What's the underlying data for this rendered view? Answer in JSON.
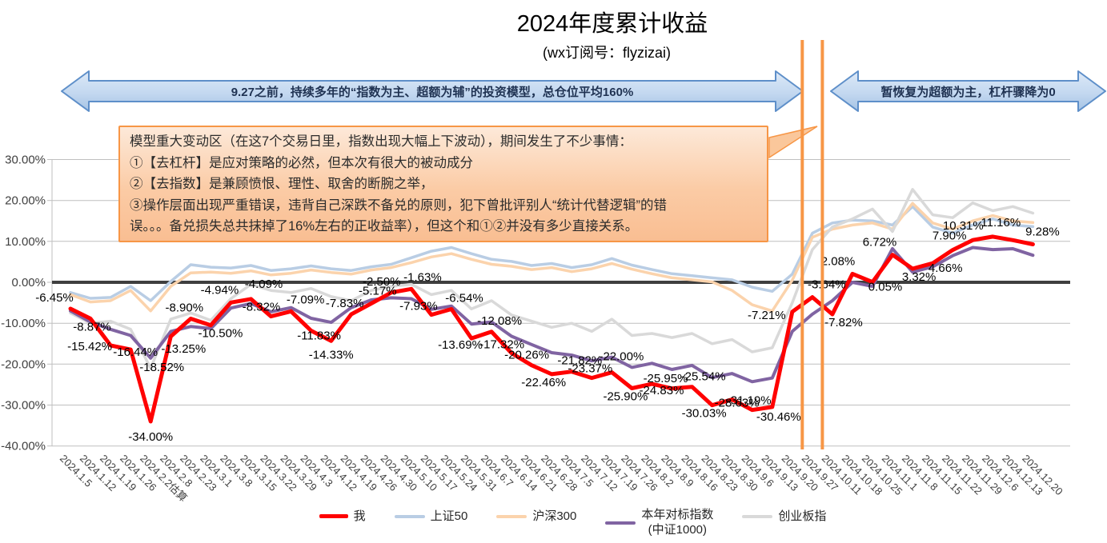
{
  "title": "2024年度累计收益",
  "subtitle": "(wx订阅号：flyzizai)",
  "banners": {
    "left": "9.27之前，持续多年的“指数为主、超额为辅”的投资模型，总仓位平均160%",
    "right": "暂恢复为超额为主，杠杆骤降为0"
  },
  "callout": {
    "lines": [
      "模型重大变动区（在这7个交易日里，指数出现大幅上下波动），期间发生了不少事情：",
      "①【去杠杆】是应对策略的必然，但本次有很大的被动成分",
      "②【去指数】是兼顾愤恨、理性、取舍的断腕之举，",
      "③操作层面出现严重错误，违背自己深跌不备兑的原则，犯下曾批评别人“统计代替逻辑”的错",
      "误。。。备兑损失总共抹掉了16%左右的正收益率），但这个和①②并没有多少直接关系。"
    ]
  },
  "chart_data": {
    "type": "line",
    "title": "2024年度累计收益",
    "ylim": [
      -40,
      30
    ],
    "grid": true,
    "legend_position": "bottom",
    "yticks": [
      {
        "v": 30,
        "label": "30.00%"
      },
      {
        "v": 20,
        "label": "20.00%"
      },
      {
        "v": 10,
        "label": "10.00%"
      },
      {
        "v": 0,
        "label": "0.00%"
      },
      {
        "v": -10,
        "label": "-10.00%"
      },
      {
        "v": -20,
        "label": "-20.00%"
      },
      {
        "v": -30,
        "label": "-30.00%"
      },
      {
        "v": -40,
        "label": "-40.00%"
      }
    ],
    "x": [
      "2024.1.5",
      "2024.1.12",
      "2024.1.19",
      "2024.1.26",
      "2024.2.2估算",
      "2024.2.8",
      "2024.2.23",
      "2024.3.1",
      "2024.3.8",
      "2024.3.15",
      "2024.3.22",
      "2024.3.29",
      "2024.4.3",
      "2024.4.12",
      "2024.4.19",
      "2024.4.26",
      "2024.4.30",
      "2024.5.10",
      "2024.5.17",
      "2024.5.24",
      "2024.5.31",
      "2024.6.7",
      "2024.6.14",
      "2024.6.21",
      "2024.6.28",
      "2024.7.5",
      "2024.7.12",
      "2024.7.19",
      "2024.7.26",
      "2024.8.2",
      "2024.8.9",
      "2024.8.16",
      "2024.8.23",
      "2024.8.30",
      "2024.9.6",
      "2024.9.13",
      "2024.9.20",
      "2024.9.27",
      "2024.10.11",
      "2024.10.18",
      "2024.10.25",
      "2024.11.1",
      "2024.11.8",
      "2024.11.15",
      "2024.11.22",
      "2024.11.29",
      "2024.12.6",
      "2024.12.13",
      "2024.12.20"
    ],
    "series": [
      {
        "name": "上证50",
        "color": "#B9CDE4",
        "width": 3.5,
        "values": [
          -2.5,
          -3.9,
          -3.7,
          -1.0,
          -4.5,
          0.2,
          4.3,
          3.7,
          3.5,
          4.1,
          2.9,
          3.3,
          4.0,
          3.3,
          2.9,
          3.8,
          4.4,
          6.0,
          7.6,
          8.5,
          7.0,
          5.6,
          5.1,
          4.1,
          4.6,
          3.6,
          4.3,
          5.8,
          4.2,
          3.1,
          2.1,
          1.6,
          1.1,
          0.6,
          -1.2,
          -2.2,
          2.0,
          12.0,
          14.5,
          15.2,
          15.0,
          14.0,
          18.5,
          13.5,
          12.0,
          14.0,
          15.5,
          14.0,
          13.6
        ],
        "labels": []
      },
      {
        "name": "沪深300",
        "color": "#FBD3AC",
        "width": 3.5,
        "values": [
          -3.0,
          -4.8,
          -4.5,
          -2.0,
          -7.0,
          -1.0,
          2.3,
          2.5,
          2.2,
          2.8,
          1.8,
          2.2,
          3.0,
          2.4,
          2.0,
          3.0,
          3.6,
          4.8,
          6.2,
          7.0,
          5.6,
          4.4,
          3.9,
          3.1,
          3.6,
          2.6,
          3.3,
          4.6,
          3.2,
          2.1,
          1.1,
          0.6,
          0.1,
          -2.0,
          -5.5,
          -7.0,
          0.5,
          11.0,
          13.0,
          14.0,
          14.5,
          13.0,
          19.3,
          14.5,
          13.0,
          15.0,
          16.3,
          15.0,
          14.6
        ],
        "labels": []
      },
      {
        "name": "创业板指",
        "color": "#D9D9D9",
        "width": 3.5,
        "values": [
          -7.5,
          -10.0,
          -9.5,
          -11.5,
          -21.0,
          -9.0,
          -7.5,
          -9.3,
          -4.0,
          -0.5,
          -2.0,
          -2.5,
          -1.5,
          -3.5,
          -4.5,
          -2.0,
          -1.0,
          -0.5,
          -3.0,
          -2.0,
          -6.5,
          -4.5,
          -8.0,
          -9.5,
          -11.0,
          -10.0,
          -12.0,
          -9.0,
          -13.0,
          -12.5,
          -13.5,
          -12.5,
          -15.0,
          -14.0,
          -17.0,
          -16.0,
          -5.0,
          8.0,
          13.5,
          15.5,
          17.9,
          12.4,
          22.7,
          16.5,
          15.8,
          19.4,
          17.5,
          18.5,
          16.9
        ],
        "labels": []
      },
      {
        "name": "本年对标指数",
        "name2": "(中证1000)",
        "color": "#8064A2",
        "width": 4,
        "values": [
          -7.0,
          -9.7,
          -11.5,
          -13.0,
          -18.52,
          -12.0,
          -10.8,
          -11.3,
          -6.3,
          -5.2,
          -7.2,
          -6.2,
          -8.8,
          -9.8,
          -6.2,
          -4.3,
          -3.8,
          -4.0,
          -6.6,
          -5.8,
          -10.2,
          -9.7,
          -13.2,
          -15.2,
          -17.2,
          -17.8,
          -19.2,
          -18.3,
          -20.8,
          -19.8,
          -21.3,
          -20.3,
          -23.3,
          -22.3,
          -24.3,
          -23.4,
          -12.0,
          -7.8,
          -4.5,
          0.0,
          -1.0,
          8.2,
          2.5,
          3.8,
          6.5,
          8.5,
          8.0,
          8.2,
          6.6
        ],
        "labels": [
          {
            "i": 4,
            "dx": 14,
            "dy": 16
          }
        ]
      },
      {
        "name": "我",
        "color": "#FF0000",
        "width": 5,
        "values": [
          -6.45,
          -8.87,
          -15.42,
          -16.44,
          -34.0,
          -13.25,
          -8.9,
          -10.5,
          -4.94,
          -4.09,
          -8.32,
          -7.09,
          -11.83,
          -14.33,
          -7.83,
          -5.17,
          -2.5,
          -1.63,
          -7.93,
          -6.54,
          -13.69,
          -12.08,
          -17.32,
          -20.26,
          -22.46,
          -21.82,
          -23.37,
          -22.0,
          -25.9,
          -24.83,
          -25.95,
          -25.54,
          -30.03,
          -28.63,
          -31.19,
          -30.46,
          -7.21,
          -3.64,
          -7.82,
          2.08,
          0.05,
          6.72,
          3.32,
          4.66,
          7.9,
          10.31,
          11.16,
          10.3,
          9.28
        ],
        "labels": [
          {
            "i": 0,
            "dx": -20,
            "dy": -9
          },
          {
            "i": 1,
            "dx": 2,
            "dy": 15
          },
          {
            "i": 2,
            "dx": -26,
            "dy": 6
          },
          {
            "i": 3,
            "dx": 6,
            "dy": 8
          },
          {
            "i": 4,
            "dx": 0,
            "dy": 24
          },
          {
            "i": 5,
            "dx": 16,
            "dy": 20
          },
          {
            "i": 6,
            "dx": -8,
            "dy": -9
          },
          {
            "i": 7,
            "dx": 12,
            "dy": 15
          },
          {
            "i": 8,
            "dx": -14,
            "dy": -11
          },
          {
            "i": 9,
            "dx": 16,
            "dy": -14
          },
          {
            "i": 10,
            "dx": -12,
            "dy": -7
          },
          {
            "i": 11,
            "dx": 18,
            "dy": -10
          },
          {
            "i": 12,
            "dx": 10,
            "dy": 11
          },
          {
            "i": 13,
            "dx": 0,
            "dy": 22
          },
          {
            "i": 14,
            "dx": -8,
            "dy": -9
          },
          {
            "i": 15,
            "dx": 8,
            "dy": -11
          },
          {
            "i": 16,
            "dx": -12,
            "dy": -9
          },
          {
            "i": 17,
            "dx": 14,
            "dy": -10
          },
          {
            "i": 18,
            "dx": -16,
            "dy": -6
          },
          {
            "i": 19,
            "dx": 16,
            "dy": -9
          },
          {
            "i": 20,
            "dx": -14,
            "dy": 13
          },
          {
            "i": 21,
            "dx": 10,
            "dy": -9
          },
          {
            "i": 22,
            "dx": -12,
            "dy": -6
          },
          {
            "i": 23,
            "dx": -6,
            "dy": -8
          },
          {
            "i": 24,
            "dx": -10,
            "dy": 15
          },
          {
            "i": 25,
            "dx": 10,
            "dy": -9
          },
          {
            "i": 26,
            "dx": -2,
            "dy": -7
          },
          {
            "i": 27,
            "dx": 12,
            "dy": -15
          },
          {
            "i": 28,
            "dx": -8,
            "dy": 15
          },
          {
            "i": 29,
            "dx": 12,
            "dy": 13
          },
          {
            "i": 30,
            "dx": -8,
            "dy": -8
          },
          {
            "i": 31,
            "dx": 14,
            "dy": -8
          },
          {
            "i": 32,
            "dx": -10,
            "dy": 15
          },
          {
            "i": 33,
            "dx": 6,
            "dy": 9
          },
          {
            "i": 34,
            "dx": -4,
            "dy": -7
          },
          {
            "i": 35,
            "dx": 8,
            "dy": 17
          },
          {
            "i": 36,
            "dx": -32,
            "dy": 9
          },
          {
            "i": 37,
            "dx": 18,
            "dy": -11
          },
          {
            "i": 38,
            "dx": 14,
            "dy": 15
          },
          {
            "i": 39,
            "dx": -18,
            "dy": -11
          },
          {
            "i": 40,
            "dx": 16,
            "dy": 11
          },
          {
            "i": 41,
            "dx": -16,
            "dy": -11
          },
          {
            "i": 42,
            "dx": 8,
            "dy": 15
          },
          {
            "i": 43,
            "dx": 16,
            "dy": 11
          },
          {
            "i": 44,
            "dx": -4,
            "dy": -13
          },
          {
            "i": 45,
            "dx": -12,
            "dy": -13
          },
          {
            "i": 46,
            "dx": 10,
            "dy": -13
          },
          {
            "i": 48,
            "dx": 12,
            "dy": -11
          }
        ]
      }
    ],
    "annotations": {
      "event_vlines": {
        "positions": [
          36.5,
          37.5
        ],
        "color": "#F79646"
      },
      "zero_line_color": "#3F3F3F",
      "gridline_color": "#BFBFBF"
    }
  }
}
